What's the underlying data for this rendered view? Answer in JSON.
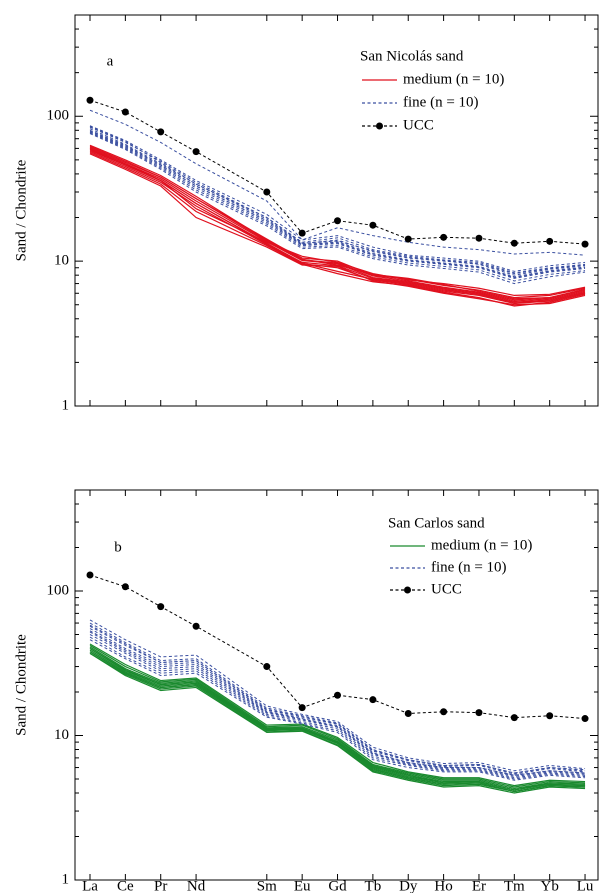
{
  "chart_data": [
    {
      "type": "line",
      "panel_label": "a",
      "legend_title": "San Nicolás sand",
      "ylabel": "Sand / Chondrite",
      "log": true,
      "ylim": [
        1,
        500
      ],
      "yticks": [
        1,
        10,
        100
      ],
      "series": [
        {
          "name": "medium (n = 10)",
          "color": "#e0101e",
          "style": "solid",
          "values": [
            [
              63,
              50,
              39,
              28,
              14,
              10.5,
              10,
              8,
              7.5,
              6.8,
              6.3,
              5.6,
              5.8,
              6.5
            ],
            [
              61,
              48,
              38,
              27,
              13.8,
              10.2,
              9.7,
              7.9,
              7.3,
              6.6,
              6.1,
              5.4,
              5.6,
              6.3
            ],
            [
              59,
              46,
              36,
              25,
              13.2,
              9.8,
              9.3,
              7.6,
              7.1,
              6.4,
              5.9,
              5.2,
              5.4,
              6.1
            ],
            [
              57,
              45,
              35,
              24,
              13,
              9.6,
              9,
              7.4,
              6.9,
              6.2,
              5.8,
              5.1,
              5.3,
              6
            ],
            [
              56,
              44,
              34,
              22,
              12.8,
              9.5,
              8.2,
              7.2,
              6.8,
              6.1,
              5.6,
              4.9,
              5.2,
              5.9
            ],
            [
              60,
              47,
              36,
              23,
              13.5,
              10.8,
              9.8,
              8.2,
              7.4,
              7,
              6.5,
              5.8,
              5.9,
              6.6
            ],
            [
              58,
              46,
              36,
              25,
              13.3,
              9.7,
              8.5,
              7.5,
              7,
              6.3,
              5.9,
              5.2,
              5.3,
              6
            ],
            [
              62,
              49,
              38,
              27,
              14.2,
              10.3,
              9.4,
              8.1,
              7.6,
              6.9,
              6.2,
              5.5,
              5.6,
              6.4
            ],
            [
              55,
              43,
              33,
              20,
              12.5,
              9.4,
              9.2,
              7.3,
              6.7,
              6,
              5.5,
              5,
              5.1,
              5.8
            ],
            [
              60,
              47,
              37,
              26,
              13.6,
              10.1,
              9.6,
              7.7,
              7.2,
              6.5,
              6,
              5.3,
              5.5,
              6.2
            ]
          ]
        },
        {
          "name": "fine (n = 10)",
          "color": "#3a4fa0",
          "style": "dashed",
          "values": [
            [
              110,
              88,
              66,
              47,
              26,
              14,
              17,
              15,
              13.5,
              12.5,
              12,
              11.2,
              11.5,
              11
            ],
            [
              86,
              68,
              50,
              36,
              21,
              14,
              15,
              12.5,
              11,
              10.5,
              10,
              8.5,
              9.3,
              9.8
            ],
            [
              84,
              66,
              49,
              35,
              20,
              13.5,
              14.5,
              12,
              10.8,
              10.2,
              9.8,
              8.3,
              9,
              9.5
            ],
            [
              82,
              64,
              47,
              34,
              19.5,
              13.2,
              14,
              11.6,
              10.5,
              10,
              9.5,
              8,
              8.8,
              9.3
            ],
            [
              80,
              63,
              46,
              33,
              19,
              13,
              13.6,
              11.3,
              10.2,
              9.7,
              9.2,
              7.8,
              8.6,
              9.1
            ],
            [
              78,
              61,
              45,
              32,
              18.5,
              12.8,
              13.2,
              11,
              10,
              9.5,
              9,
              7.6,
              8.4,
              8.9
            ],
            [
              77,
              60,
              44,
              31,
              18,
              12.5,
              12.8,
              10.7,
              9.7,
              9.2,
              8.7,
              7.3,
              8.1,
              8.6
            ],
            [
              76,
              59,
              43,
              30,
              17.5,
              12.2,
              12.5,
              10.4,
              9.4,
              8.9,
              8.4,
              7,
              7.8,
              8.4
            ],
            [
              85,
              67,
              48,
              34,
              20,
              13.3,
              13.8,
              11.8,
              10.6,
              10.1,
              9.6,
              8.2,
              8.9,
              9.4
            ],
            [
              79,
              62,
              46,
              33,
              19,
              13,
              13.4,
              11.1,
              10.1,
              9.6,
              9.1,
              7.7,
              8.5,
              9
            ]
          ]
        },
        {
          "name": "UCC",
          "color": "#000000",
          "style": "dashed",
          "marker": "circle",
          "values": [
            129,
            107,
            78,
            57,
            30,
            15.6,
            19,
            17.7,
            14.2,
            14.6,
            14.4,
            13.3,
            13.7,
            13.1
          ]
        }
      ]
    },
    {
      "type": "line",
      "panel_label": "b",
      "legend_title": "San Carlos sand",
      "ylabel": "Sand / Chondrite",
      "categories": [
        "La",
        "Ce",
        "Pr",
        "Nd",
        "Sm",
        "Eu",
        "Gd",
        "Tb",
        "Dy",
        "Ho",
        "Er",
        "Tm",
        "Yb",
        "Lu"
      ],
      "log": true,
      "ylim": [
        1,
        500
      ],
      "yticks": [
        1,
        10,
        100
      ],
      "series": [
        {
          "name": "medium (n = 10)",
          "color": "#1a8a2e",
          "style": "solid",
          "values": [
            [
              42,
              30,
              23.5,
              24.5,
              11.5,
              11.8,
              9.5,
              6.3,
              5.5,
              5,
              5,
              4.4,
              4.8,
              4.7
            ],
            [
              41,
              29,
              23,
              24,
              11.3,
              11.5,
              9.3,
              6.2,
              5.4,
              4.9,
              4.9,
              4.3,
              4.7,
              4.6
            ],
            [
              40,
              28,
              22.5,
              23.5,
              11.1,
              11.3,
              9.1,
              6.1,
              5.3,
              4.8,
              4.8,
              4.2,
              4.6,
              4.5
            ],
            [
              39,
              27.5,
              22,
              23,
              11,
              11.1,
              9,
              6,
              5.2,
              4.7,
              4.8,
              4.2,
              4.6,
              4.5
            ],
            [
              38,
              27,
              21.5,
              22.5,
              10.8,
              11,
              8.8,
              5.8,
              5.1,
              4.6,
              4.7,
              4.1,
              4.5,
              4.4
            ],
            [
              37,
              26.5,
              21,
              22,
              10.6,
              10.8,
              8.6,
              5.7,
              5,
              4.5,
              4.6,
              4.1,
              4.5,
              4.4
            ],
            [
              37,
              26,
              20.5,
              21.5,
              10.5,
              10.7,
              8.5,
              5.6,
              4.9,
              4.4,
              4.5,
              4,
              4.4,
              4.3
            ],
            [
              40,
              28.5,
              22.5,
              23.5,
              11.2,
              11.2,
              9,
              6.1,
              5.3,
              4.7,
              4.8,
              4.2,
              4.7,
              4.6
            ],
            [
              43,
              31,
              24,
              25,
              11.8,
              12,
              9.7,
              6.5,
              5.6,
              5.1,
              5.1,
              4.5,
              4.9,
              4.8
            ],
            [
              38,
              27,
              21.5,
              22.5,
              10.9,
              11,
              8.9,
              5.9,
              5.1,
              4.6,
              4.7,
              4.1,
              4.5,
              4.4
            ]
          ]
        },
        {
          "name": "fine (n = 10)",
          "color": "#3a4fa0",
          "style": "dashed",
          "values": [
            [
              63,
              46,
              35,
              36,
              16,
              14,
              12.5,
              8.3,
              7,
              6.4,
              6.5,
              5.7,
              6.2,
              5.9
            ],
            [
              60,
              44,
              33,
              34,
              15.5,
              13.7,
              12.2,
              8,
              6.8,
              6.2,
              6.3,
              5.5,
              6,
              5.7
            ],
            [
              57,
              42,
              32,
              33,
              15,
              13.4,
              12,
              7.8,
              6.7,
              6.1,
              6.2,
              5.4,
              5.9,
              5.6
            ],
            [
              55,
              40,
              31,
              32,
              14.7,
              13.1,
              11.7,
              7.6,
              6.5,
              6,
              6,
              5.3,
              5.7,
              5.5
            ],
            [
              52,
              38,
              29,
              30,
              14.3,
              12.8,
              11.4,
              7.4,
              6.4,
              5.9,
              5.9,
              5.2,
              5.6,
              5.4
            ],
            [
              50,
              37,
              28,
              29,
              14,
              12.5,
              11.1,
              7.2,
              6.3,
              5.8,
              5.8,
              5.1,
              5.5,
              5.3
            ],
            [
              48,
              35,
              27,
              28,
              13.7,
              12.2,
              10.8,
              7,
              6.2,
              5.7,
              5.7,
              5,
              5.4,
              5.2
            ],
            [
              46,
              34,
              26,
              27,
              13.4,
              12,
              10.5,
              6.8,
              6,
              5.6,
              5.6,
              4.9,
              5.3,
              5.1
            ],
            [
              58,
              43,
              32,
              33,
              15.2,
              13.5,
              12,
              7.9,
              6.8,
              6.2,
              6.3,
              5.5,
              6,
              5.8
            ],
            [
              53,
              39,
              30,
              31,
              14.5,
              13,
              11.5,
              7.5,
              6.5,
              6,
              6,
              5.3,
              5.7,
              5.5
            ]
          ]
        },
        {
          "name": "UCC",
          "color": "#000000",
          "style": "dashed",
          "marker": "circle",
          "values": [
            129,
            107,
            78,
            57,
            30,
            15.6,
            19,
            17.7,
            14.2,
            14.6,
            14.4,
            13.3,
            13.7,
            13.1
          ]
        }
      ]
    }
  ]
}
